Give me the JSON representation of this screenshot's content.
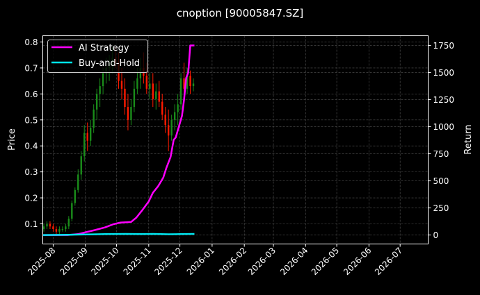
{
  "chart_data": {
    "type": "candlestick+line",
    "title": "cnoption [90005847.SZ]",
    "ylabel_left": "Price",
    "ylabel_right": "Return",
    "xlabel": "",
    "grid": true,
    "legend_position": "top-left",
    "x_range": [
      "2025-07-22",
      "2026-07-28"
    ],
    "ylim_left": [
      0.0225,
      0.824
    ],
    "ylim_right": [
      -83,
      1840
    ],
    "x_ticks": [
      "2025-08",
      "2025-09",
      "2025-10",
      "2025-11",
      "2025-12",
      "2026-01",
      "2026-02",
      "2026-03",
      "2026-04",
      "2026-05",
      "2026-06",
      "2026-07"
    ],
    "y_ticks_left": [
      0.1,
      0.2,
      0.3,
      0.4,
      0.5,
      0.6,
      0.7,
      0.8
    ],
    "y_tick_labels_left": [
      "0.1",
      "0.2",
      "0.3",
      "0.4",
      "0.5",
      "0.6",
      "0.7",
      "0.8"
    ],
    "y_ticks_right": [
      0,
      250,
      500,
      750,
      1000,
      1250,
      1500,
      1750
    ],
    "y_tick_labels_right": [
      "0",
      "250",
      "500",
      "750",
      "1000",
      "1250",
      "1500",
      "1750"
    ],
    "colors": {
      "up": "#1a8c1a",
      "down": "#ff1a00",
      "strategy": "#ff00ff",
      "buyhold": "#00e5ee",
      "grid": "#555555",
      "axes": "#ffffff"
    },
    "candles_columns": [
      "date",
      "open",
      "high",
      "low",
      "close"
    ],
    "candles": [
      [
        "2025-07-23",
        0.08,
        0.1,
        0.07,
        0.09
      ],
      [
        "2025-07-26",
        0.09,
        0.11,
        0.08,
        0.1
      ],
      [
        "2025-07-29",
        0.1,
        0.11,
        0.08,
        0.09
      ],
      [
        "2025-08-01",
        0.09,
        0.1,
        0.07,
        0.08
      ],
      [
        "2025-08-04",
        0.08,
        0.09,
        0.06,
        0.07
      ],
      [
        "2025-08-07",
        0.07,
        0.09,
        0.06,
        0.08
      ],
      [
        "2025-08-10",
        0.08,
        0.09,
        0.07,
        0.08
      ],
      [
        "2025-08-13",
        0.08,
        0.1,
        0.07,
        0.09
      ],
      [
        "2025-08-16",
        0.09,
        0.13,
        0.08,
        0.12
      ],
      [
        "2025-08-19",
        0.12,
        0.19,
        0.11,
        0.18
      ],
      [
        "2025-08-22",
        0.18,
        0.24,
        0.17,
        0.23
      ],
      [
        "2025-08-25",
        0.23,
        0.31,
        0.22,
        0.29
      ],
      [
        "2025-08-28",
        0.29,
        0.38,
        0.27,
        0.36
      ],
      [
        "2025-08-31",
        0.36,
        0.48,
        0.34,
        0.45
      ],
      [
        "2025-09-03",
        0.45,
        0.49,
        0.38,
        0.42
      ],
      [
        "2025-09-06",
        0.42,
        0.5,
        0.4,
        0.47
      ],
      [
        "2025-09-09",
        0.47,
        0.56,
        0.45,
        0.54
      ],
      [
        "2025-09-12",
        0.54,
        0.62,
        0.5,
        0.6
      ],
      [
        "2025-09-15",
        0.6,
        0.66,
        0.55,
        0.63
      ],
      [
        "2025-09-18",
        0.63,
        0.7,
        0.6,
        0.68
      ],
      [
        "2025-09-21",
        0.68,
        0.74,
        0.64,
        0.7
      ],
      [
        "2025-09-24",
        0.7,
        0.75,
        0.65,
        0.72
      ],
      [
        "2025-09-27",
        0.72,
        0.78,
        0.68,
        0.74
      ],
      [
        "2025-09-30",
        0.74,
        0.78,
        0.7,
        0.72
      ],
      [
        "2025-10-03",
        0.72,
        0.76,
        0.62,
        0.65
      ],
      [
        "2025-10-06",
        0.65,
        0.7,
        0.58,
        0.62
      ],
      [
        "2025-10-09",
        0.62,
        0.66,
        0.52,
        0.55
      ],
      [
        "2025-10-12",
        0.55,
        0.6,
        0.46,
        0.5
      ],
      [
        "2025-10-15",
        0.5,
        0.58,
        0.48,
        0.55
      ],
      [
        "2025-10-18",
        0.55,
        0.65,
        0.53,
        0.62
      ],
      [
        "2025-10-21",
        0.62,
        0.7,
        0.6,
        0.66
      ],
      [
        "2025-10-24",
        0.66,
        0.74,
        0.62,
        0.7
      ],
      [
        "2025-10-27",
        0.7,
        0.76,
        0.64,
        0.67
      ],
      [
        "2025-10-30",
        0.67,
        0.72,
        0.6,
        0.62
      ],
      [
        "2025-11-02",
        0.62,
        0.68,
        0.58,
        0.64
      ],
      [
        "2025-11-05",
        0.64,
        0.68,
        0.55,
        0.58
      ],
      [
        "2025-11-08",
        0.58,
        0.64,
        0.54,
        0.61
      ],
      [
        "2025-11-11",
        0.61,
        0.65,
        0.55,
        0.57
      ],
      [
        "2025-11-14",
        0.57,
        0.6,
        0.5,
        0.52
      ],
      [
        "2025-11-17",
        0.52,
        0.55,
        0.45,
        0.48
      ],
      [
        "2025-11-20",
        0.48,
        0.54,
        0.38,
        0.44
      ],
      [
        "2025-11-23",
        0.44,
        0.52,
        0.42,
        0.5
      ],
      [
        "2025-11-26",
        0.5,
        0.56,
        0.46,
        0.53
      ],
      [
        "2025-11-29",
        0.53,
        0.6,
        0.48,
        0.56
      ],
      [
        "2025-12-02",
        0.56,
        0.68,
        0.54,
        0.66
      ],
      [
        "2025-12-05",
        0.66,
        0.72,
        0.58,
        0.62
      ],
      [
        "2025-12-08",
        0.62,
        0.7,
        0.6,
        0.67
      ],
      [
        "2025-12-11",
        0.67,
        0.69,
        0.6,
        0.63
      ],
      [
        "2025-12-14",
        0.63,
        0.66,
        0.61,
        0.64
      ]
    ],
    "series": [
      {
        "name": "AI Strategy",
        "points": [
          [
            "2025-07-22",
            0
          ],
          [
            "2025-08-15",
            0
          ],
          [
            "2025-08-25",
            8
          ],
          [
            "2025-09-01",
            25
          ],
          [
            "2025-09-10",
            45
          ],
          [
            "2025-09-20",
            70
          ],
          [
            "2025-09-28",
            100
          ],
          [
            "2025-10-05",
            115
          ],
          [
            "2025-10-15",
            120
          ],
          [
            "2025-10-20",
            160
          ],
          [
            "2025-10-25",
            220
          ],
          [
            "2025-11-01",
            310
          ],
          [
            "2025-11-05",
            390
          ],
          [
            "2025-11-10",
            450
          ],
          [
            "2025-11-15",
            530
          ],
          [
            "2025-11-18",
            620
          ],
          [
            "2025-11-22",
            720
          ],
          [
            "2025-11-25",
            880
          ],
          [
            "2025-11-27",
            900
          ],
          [
            "2025-11-30",
            1000
          ],
          [
            "2025-12-03",
            1100
          ],
          [
            "2025-12-05",
            1250
          ],
          [
            "2025-12-07",
            1450
          ],
          [
            "2025-12-09",
            1500
          ],
          [
            "2025-12-11",
            1750
          ],
          [
            "2025-12-15",
            1750
          ]
        ]
      },
      {
        "name": "Buy-and-Hold",
        "points": [
          [
            "2025-07-22",
            0
          ],
          [
            "2025-08-15",
            2
          ],
          [
            "2025-09-01",
            5
          ],
          [
            "2025-09-20",
            8
          ],
          [
            "2025-10-10",
            10
          ],
          [
            "2025-10-25",
            8
          ],
          [
            "2025-11-05",
            10
          ],
          [
            "2025-11-20",
            7
          ],
          [
            "2025-12-01",
            8
          ],
          [
            "2025-12-15",
            10
          ]
        ]
      }
    ]
  }
}
